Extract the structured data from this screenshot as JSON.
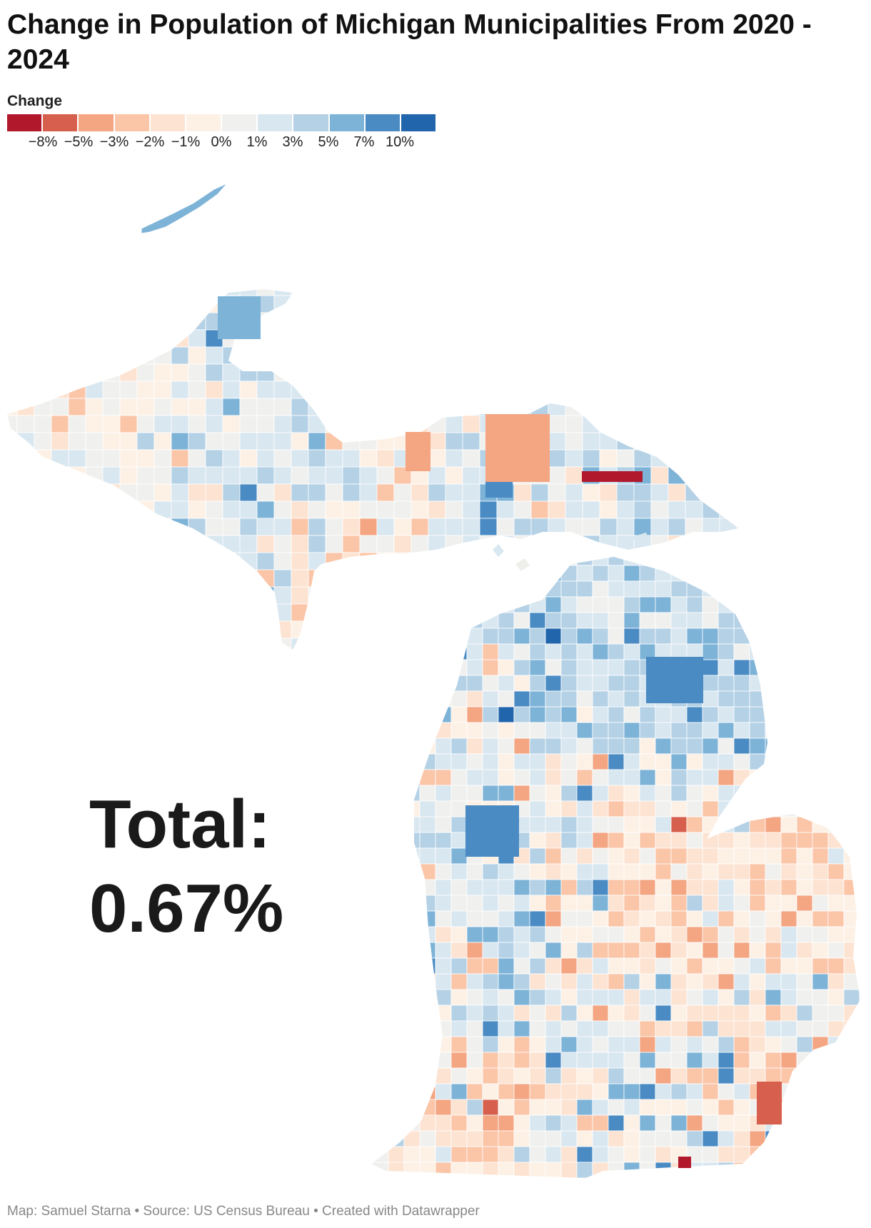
{
  "title": "Change in Population of Michigan Municipalities From 2020 - 2024",
  "legend": {
    "title": "Change",
    "colors": [
      "#b2182b",
      "#d6604d",
      "#f4a582",
      "#fbc5a8",
      "#fde3d1",
      "#fdf1e6",
      "#f0f1ee",
      "#d8e7f0",
      "#b5d1e6",
      "#7eb3d8",
      "#4a8bc4",
      "#2166ac"
    ],
    "ticks": [
      "−8%",
      "−5%",
      "−3%",
      "−2%",
      "−1%",
      "0%",
      "1%",
      "3%",
      "5%",
      "7%",
      "10%"
    ]
  },
  "total": {
    "label": "Total:",
    "value": "0.67%"
  },
  "footer": "Map: Samuel Starna • Source: US Census Bureau • Created with Datawrapper",
  "map": {
    "state": "Michigan",
    "map_type": "choropleth",
    "units": "municipalities",
    "neutral_color": "#eeeeea"
  }
}
